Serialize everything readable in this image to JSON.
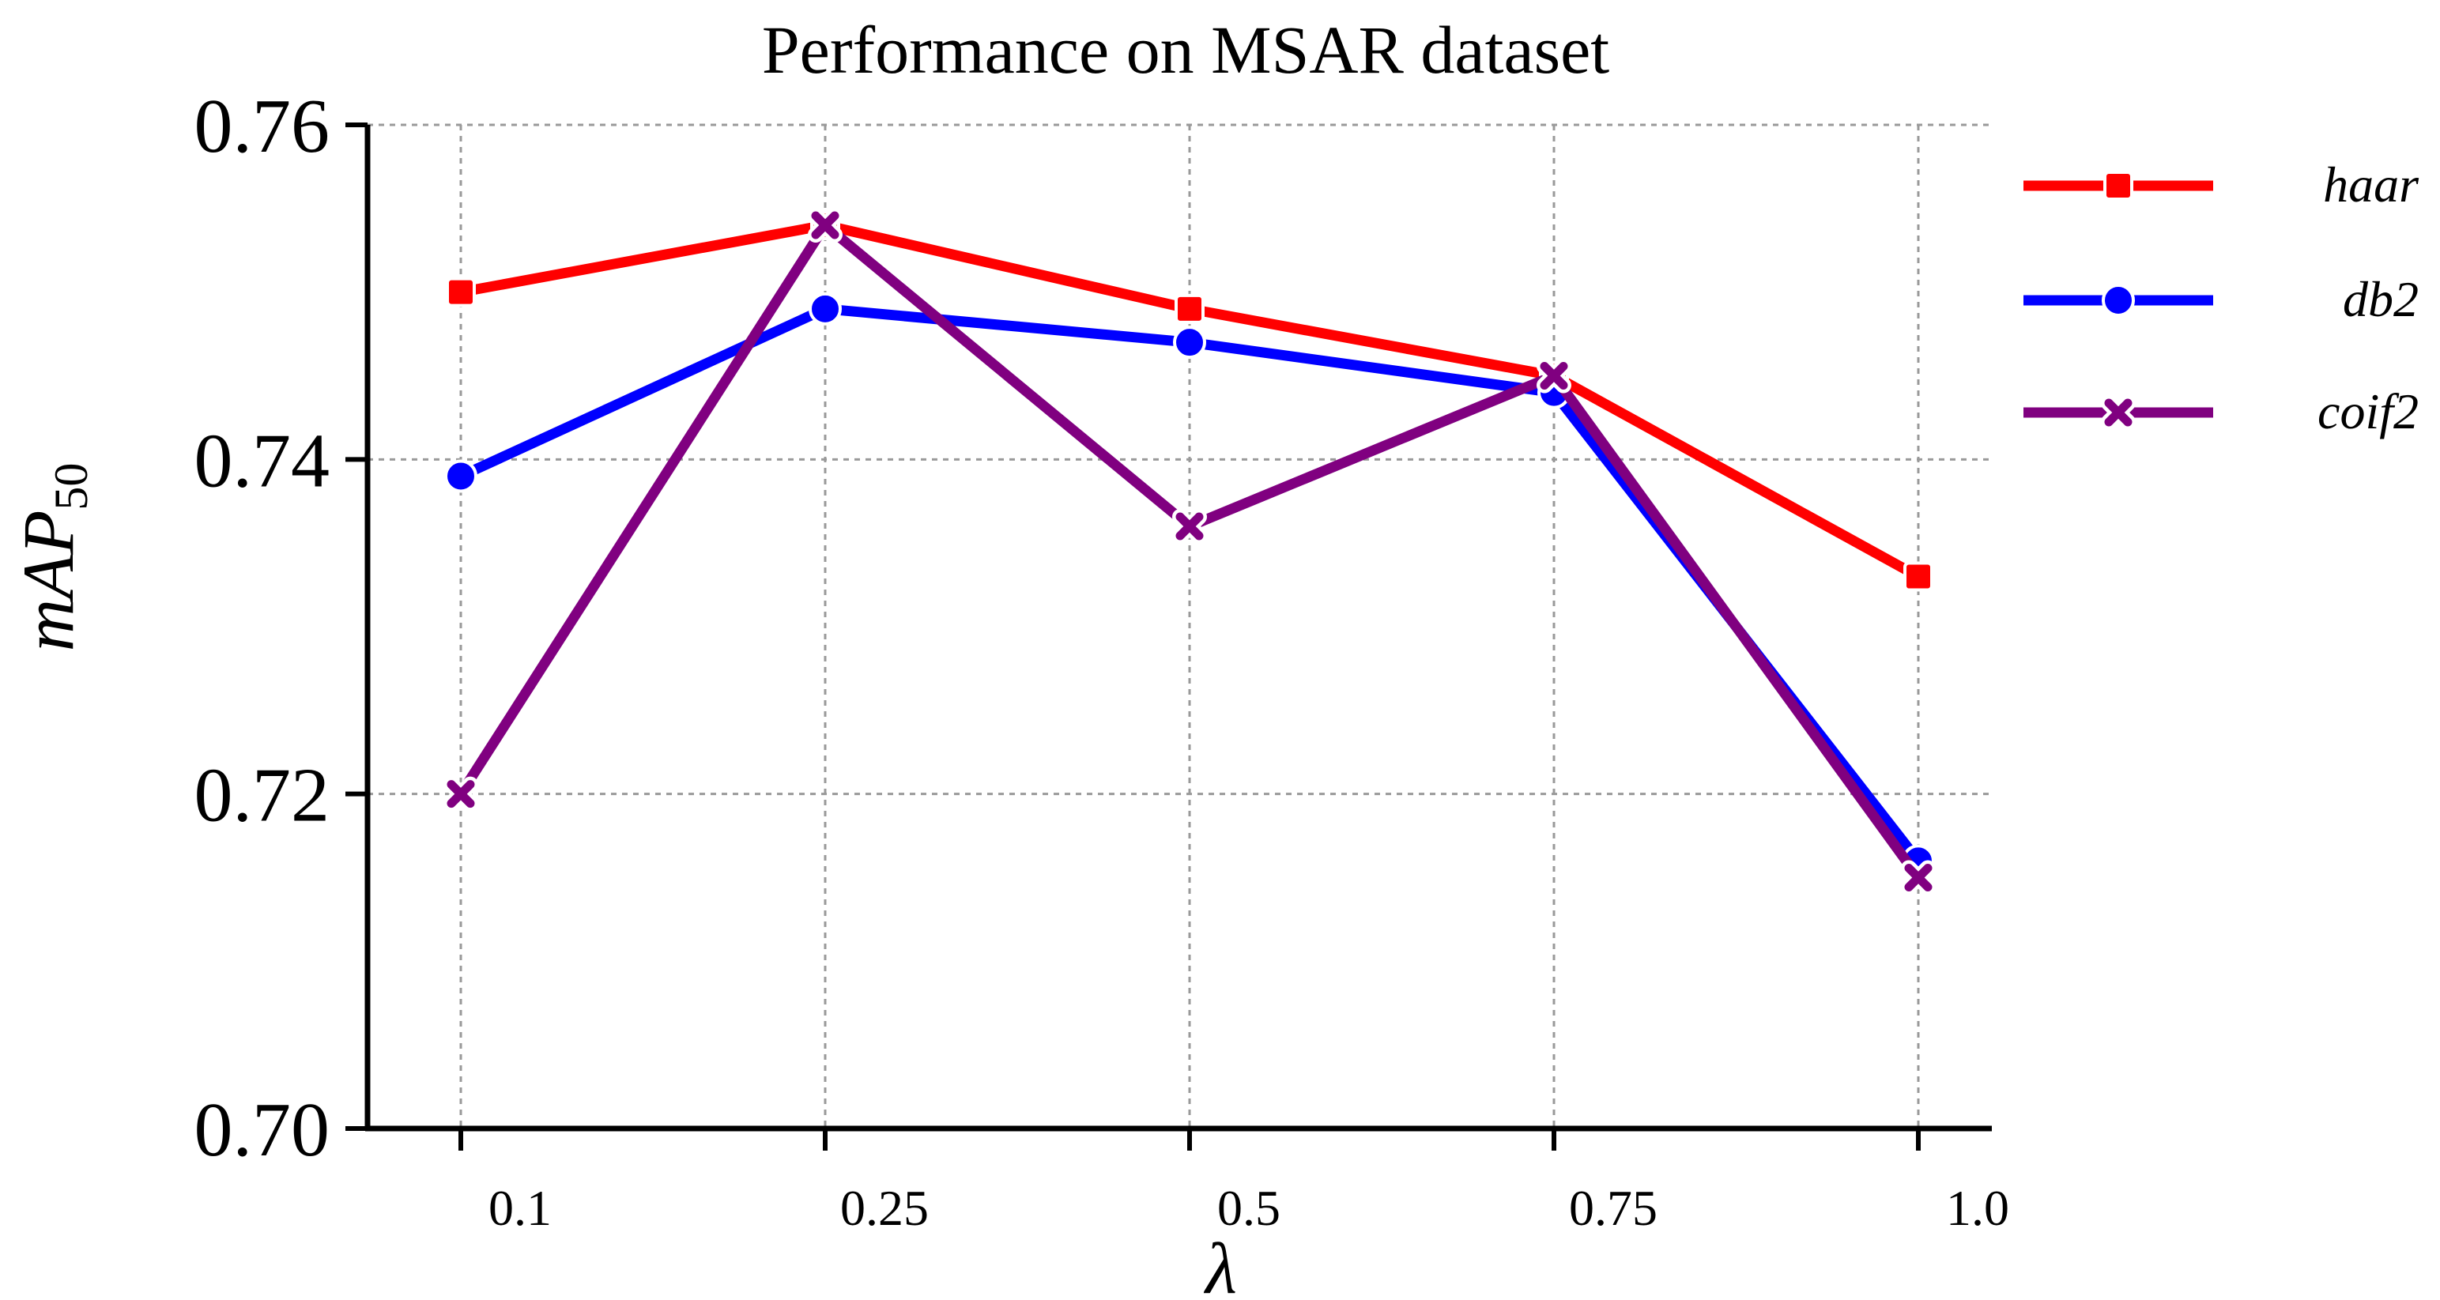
{
  "chart_data": {
    "type": "line",
    "title": "Performance on MSAR dataset",
    "xlabel": "λ",
    "ylabel": "mAP",
    "ylabel_subscript": "50",
    "categories": [
      "0.1",
      "0.25",
      "0.5",
      "0.75",
      "1.0"
    ],
    "ylim": [
      0.7,
      0.76
    ],
    "yticks": [
      0.7,
      0.72,
      0.74,
      0.76
    ],
    "ytick_labels": [
      "0.70",
      "0.72",
      "0.74",
      "0.76"
    ],
    "grid": true,
    "legend_position": "right",
    "series": [
      {
        "name": "haar",
        "color": "#ff0000",
        "marker": "square",
        "values": [
          0.75,
          0.754,
          0.749,
          0.745,
          0.733
        ]
      },
      {
        "name": "db2",
        "color": "#0000ff",
        "marker": "circle",
        "values": [
          0.739,
          0.749,
          0.747,
          0.744,
          0.716
        ]
      },
      {
        "name": "coif2",
        "color": "#800080",
        "marker": "x",
        "values": [
          0.72,
          0.754,
          0.736,
          0.745,
          0.715
        ]
      }
    ]
  }
}
